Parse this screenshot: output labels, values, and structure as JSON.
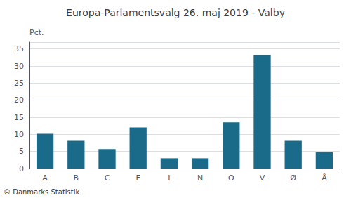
{
  "chart_data": {
    "type": "bar",
    "title": "Europa-Parlamentsvalg 26. maj 2019 - Valby",
    "categories": [
      "A",
      "B",
      "C",
      "F",
      "I",
      "N",
      "O",
      "V",
      "Ø",
      "Å"
    ],
    "values": [
      10.2,
      8.1,
      5.7,
      12.0,
      3.0,
      3.0,
      13.5,
      33.2,
      8.1,
      4.8
    ],
    "color": "#1a6a8a",
    "ylabel": "Pct.",
    "footer": "© Danmarks Statistik",
    "ylim": [
      0,
      37
    ],
    "yticks": [
      0,
      5,
      10,
      15,
      20,
      25,
      30,
      35
    ],
    "grid": true
  }
}
